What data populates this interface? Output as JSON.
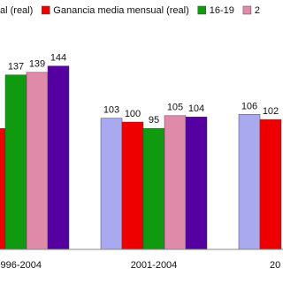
{
  "chart_data": {
    "type": "bar",
    "categories": [
      "996-2004",
      "2001-2004",
      "20"
    ],
    "series": [
      {
        "name": "al (real)",
        "color": "#a9a9f0",
        "values": [
          null,
          103,
          106
        ]
      },
      {
        "name": "Ganancia media mensual (real)",
        "color": "#ee0000",
        "values": [
          95,
          100,
          102
        ]
      },
      {
        "name": "16-19",
        "color": "#0f9a0f",
        "values": [
          137,
          95,
          null
        ]
      },
      {
        "name": "2",
        "color": "#e08aaa",
        "values": [
          139,
          105,
          null
        ]
      },
      {
        "color": "#5500a0",
        "values": [
          144,
          104,
          null
        ]
      }
    ],
    "ylim": [
      0,
      150
    ]
  }
}
